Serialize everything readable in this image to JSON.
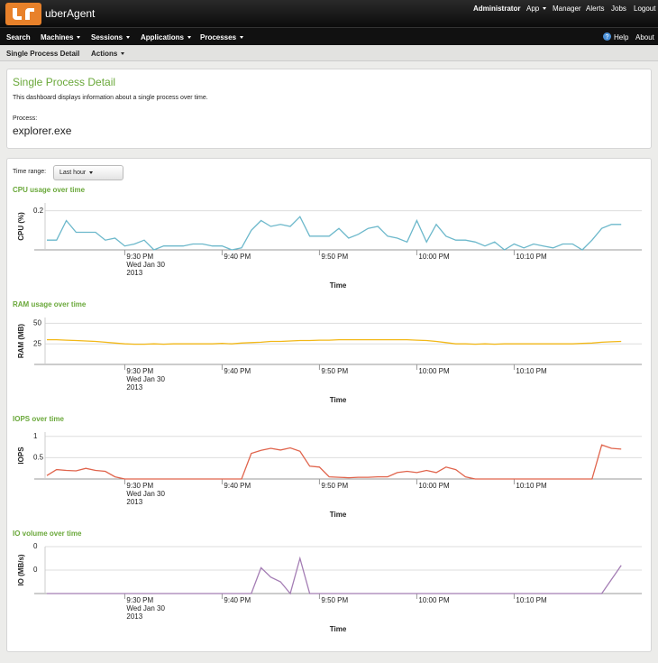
{
  "header": {
    "brand": "uberAgent",
    "links": [
      "Administrator",
      "App",
      "Manager",
      "Alerts",
      "Jobs",
      "Logout"
    ]
  },
  "nav": {
    "items": [
      "Search",
      "Machines",
      "Sessions",
      "Applications",
      "Processes"
    ],
    "right": [
      "Help",
      "About"
    ]
  },
  "subnav": {
    "title": "Single Process Detail",
    "actions": "Actions"
  },
  "panel": {
    "title": "Single Process Detail",
    "description": "This dashboard displays information about a single process over time.",
    "process_label": "Process:",
    "process": "explorer.exe"
  },
  "time_range": {
    "label": "Time range:",
    "value": "Last hour"
  },
  "chart_data": [
    {
      "type": "line",
      "title": "CPU usage over time",
      "xlabel": "Time",
      "ylabel": "CPU (%)",
      "color": "#6cb8cb",
      "categories": [
        null,
        null,
        null,
        null,
        null,
        null,
        null,
        null,
        "9:30 PM",
        null,
        null,
        null,
        null,
        null,
        null,
        null,
        null,
        null,
        "9:40 PM",
        null,
        null,
        null,
        null,
        null,
        null,
        null,
        null,
        null,
        "9:50 PM",
        null,
        null,
        null,
        null,
        null,
        null,
        null,
        null,
        null,
        "10:00 PM",
        null,
        null,
        null,
        null,
        null,
        null,
        null,
        null,
        null,
        "10:10 PM",
        null,
        null,
        null,
        null,
        null,
        null,
        null,
        null,
        null,
        null,
        null
      ],
      "date_label": [
        "Wed Jan 30",
        "2013"
      ],
      "values": [
        0.05,
        0.05,
        0.15,
        0.09,
        0.09,
        0.09,
        0.05,
        0.06,
        0.02,
        0.03,
        0.05,
        0.0,
        0.02,
        0.02,
        0.02,
        0.03,
        0.03,
        0.02,
        0.02,
        0.0,
        0.01,
        0.1,
        0.15,
        0.12,
        0.13,
        0.12,
        0.17,
        0.07,
        0.07,
        0.07,
        0.11,
        0.06,
        0.08,
        0.11,
        0.12,
        0.07,
        0.06,
        0.04,
        0.15,
        0.04,
        0.13,
        0.07,
        0.05,
        0.05,
        0.04,
        0.02,
        0.04,
        0.0,
        0.03,
        0.01,
        0.03,
        0.02,
        0.01,
        0.03,
        0.03,
        0.0,
        0.05,
        0.11,
        0.13,
        0.13
      ],
      "ylim": [
        0,
        0.24
      ],
      "yticks": [
        0.2
      ],
      "grid": true
    },
    {
      "type": "line",
      "title": "RAM usage over time",
      "xlabel": "Time",
      "ylabel": "RAM (MB)",
      "color": "#f2b818",
      "categories": [
        null,
        null,
        null,
        null,
        null,
        null,
        null,
        null,
        "9:30 PM",
        null,
        null,
        null,
        null,
        null,
        null,
        null,
        null,
        null,
        "9:40 PM",
        null,
        null,
        null,
        null,
        null,
        null,
        null,
        null,
        null,
        "9:50 PM",
        null,
        null,
        null,
        null,
        null,
        null,
        null,
        null,
        null,
        "10:00 PM",
        null,
        null,
        null,
        null,
        null,
        null,
        null,
        null,
        null,
        "10:10 PM",
        null,
        null,
        null,
        null,
        null,
        null,
        null,
        null,
        null,
        null,
        null
      ],
      "date_label": [
        "Wed Jan 30",
        "2013"
      ],
      "values": [
        30,
        30,
        29.5,
        29,
        28.5,
        28,
        27,
        26,
        25,
        24.5,
        24.5,
        25,
        24.5,
        25,
        25,
        25,
        25,
        25,
        25.5,
        25,
        26,
        26.5,
        27,
        28,
        28,
        28.5,
        29,
        29,
        29.5,
        29.5,
        30,
        30,
        30,
        30,
        30,
        30,
        30,
        30,
        29.5,
        29,
        28,
        26.5,
        25,
        25,
        24.5,
        25,
        24.5,
        25,
        25,
        25,
        25,
        25,
        25,
        25,
        25,
        25.5,
        26,
        27,
        27.5,
        28
      ],
      "ylim": [
        0,
        57
      ],
      "yticks": [
        25,
        50
      ],
      "grid": true
    },
    {
      "type": "line",
      "title": "IOPS over time",
      "xlabel": "Time",
      "ylabel": "IOPS",
      "color": "#e0644c",
      "categories": [
        null,
        null,
        null,
        null,
        null,
        null,
        null,
        null,
        "9:30 PM",
        null,
        null,
        null,
        null,
        null,
        null,
        null,
        null,
        null,
        "9:40 PM",
        null,
        null,
        null,
        null,
        null,
        null,
        null,
        null,
        null,
        "9:50 PM",
        null,
        null,
        null,
        null,
        null,
        null,
        null,
        null,
        null,
        "10:00 PM",
        null,
        null,
        null,
        null,
        null,
        null,
        null,
        null,
        null,
        "10:10 PM",
        null,
        null,
        null,
        null,
        null,
        null,
        null,
        null,
        null,
        null,
        null
      ],
      "date_label": [
        "Wed Jan 30",
        "2013"
      ],
      "values": [
        0.08,
        0.22,
        0.2,
        0.19,
        0.25,
        0.2,
        0.18,
        0.05,
        0,
        0,
        0,
        0,
        0,
        0,
        0,
        0,
        0,
        0,
        0,
        0,
        0,
        0.6,
        0.67,
        0.72,
        0.68,
        0.73,
        0.65,
        0.3,
        0.28,
        0.05,
        0.04,
        0.03,
        0.04,
        0.04,
        0.05,
        0.05,
        0.15,
        0.18,
        0.15,
        0.2,
        0.15,
        0.28,
        0.22,
        0.05,
        0,
        0,
        0,
        0,
        0,
        0,
        0,
        0,
        0,
        0,
        0,
        0,
        0,
        0.8,
        0.72,
        0.7
      ],
      "ylim": [
        0,
        1.1
      ],
      "yticks": [
        0.5,
        1
      ],
      "grid": true
    },
    {
      "type": "line",
      "title": "IO volume over time",
      "xlabel": "Time",
      "ylabel": "IO (MB/s)",
      "color": "#a47db4",
      "categories": [
        null,
        null,
        null,
        null,
        null,
        null,
        null,
        null,
        "9:30 PM",
        null,
        null,
        null,
        null,
        null,
        null,
        null,
        null,
        null,
        "9:40 PM",
        null,
        null,
        null,
        null,
        null,
        null,
        null,
        null,
        null,
        "9:50 PM",
        null,
        null,
        null,
        null,
        null,
        null,
        null,
        null,
        null,
        "10:00 PM",
        null,
        null,
        null,
        null,
        null,
        null,
        null,
        null,
        null,
        "10:10 PM",
        null,
        null,
        null,
        null,
        null,
        null,
        null,
        null,
        null,
        null,
        null
      ],
      "date_label": [
        "Wed Jan 30",
        "2013"
      ],
      "values": [
        0,
        0,
        0,
        0,
        0,
        0,
        0,
        0,
        0,
        0,
        0,
        0,
        0,
        0,
        0,
        0,
        0,
        0,
        0,
        0,
        0,
        0,
        0.055,
        0.035,
        0.025,
        0,
        0.075,
        0,
        0,
        0,
        0,
        0,
        0,
        0,
        0,
        0,
        0,
        0,
        0,
        0,
        0,
        0,
        0,
        0,
        0,
        0,
        0,
        0,
        0,
        0,
        0,
        0,
        0,
        0,
        0,
        0,
        0,
        0,
        0.03,
        0.06
      ],
      "ylim": [
        0,
        0.1
      ],
      "yticks": [
        {
          "value": 0.05,
          "label": "0"
        },
        {
          "value": 0.1,
          "label": "0"
        }
      ],
      "grid": true
    }
  ]
}
